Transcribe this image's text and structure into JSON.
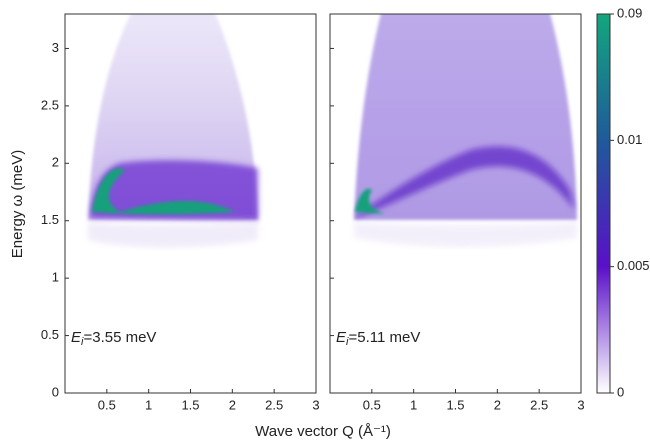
{
  "chart_data": {
    "type": "heatmap",
    "xlabel": "Wave vector Q (Å⁻¹)",
    "ylabel": "Energy ω (meV)",
    "xlim": [
      0,
      3
    ],
    "ylim": [
      0,
      3.3
    ],
    "xticks": [
      0.5,
      1,
      1.5,
      2,
      2.5,
      3
    ],
    "yticks": [
      0,
      0.5,
      1,
      1.5,
      2,
      2.5,
      3
    ],
    "panels": [
      {
        "annotation": {
          "symbol": "E",
          "subscript": "i",
          "text": "=3.55 meV"
        }
      },
      {
        "annotation": {
          "symbol": "E",
          "subscript": "i",
          "text": "=5.11 meV"
        }
      }
    ],
    "colorbar": {
      "ticks": [
        0,
        0.005,
        0.01,
        0.09
      ],
      "colors": [
        "#ffffff",
        "#5a10c8",
        "#1f5a9a",
        "#13a67e"
      ]
    }
  }
}
